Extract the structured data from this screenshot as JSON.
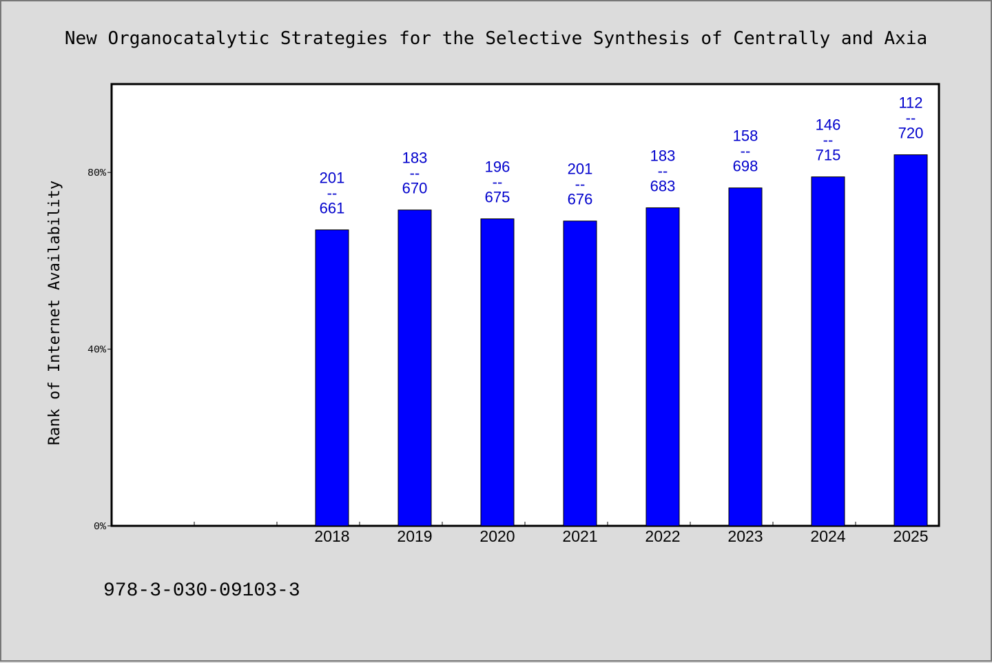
{
  "chart_data": {
    "type": "bar",
    "title": "New Organocatalytic Strategies for the Selective Synthesis of Centrally and Axia",
    "ylabel": "Rank of Internet Availability",
    "xlabel": "",
    "categories": [
      "2018",
      "2019",
      "2020",
      "2021",
      "2022",
      "2023",
      "2024",
      "2025"
    ],
    "category_slots_before_data": 2,
    "values": [
      67,
      71.5,
      69.5,
      69,
      72,
      76.5,
      79,
      84
    ],
    "ylim": [
      0,
      100
    ],
    "y_ticks": [
      {
        "value": 0,
        "label": "0%"
      },
      {
        "value": 40,
        "label": "40%"
      },
      {
        "value": 80,
        "label": "80%"
      }
    ],
    "bar_labels": [
      {
        "top": "201",
        "sep": "--",
        "bottom": "661"
      },
      {
        "top": "183",
        "sep": "--",
        "bottom": "670"
      },
      {
        "top": "196",
        "sep": "--",
        "bottom": "675"
      },
      {
        "top": "201",
        "sep": "--",
        "bottom": "676"
      },
      {
        "top": "183",
        "sep": "--",
        "bottom": "683"
      },
      {
        "top": "158",
        "sep": "--",
        "bottom": "698"
      },
      {
        "top": "146",
        "sep": "--",
        "bottom": "715"
      },
      {
        "top": "112",
        "sep": "--",
        "bottom": "720"
      }
    ],
    "grid": false,
    "legend": "none",
    "colors": {
      "bar": "#0000ff",
      "bar_label": "#0000cc",
      "plot_background": "#ffffff",
      "page_background": "#dcdcdc"
    }
  },
  "footer": {
    "isbn": "978-3-030-09103-3"
  }
}
